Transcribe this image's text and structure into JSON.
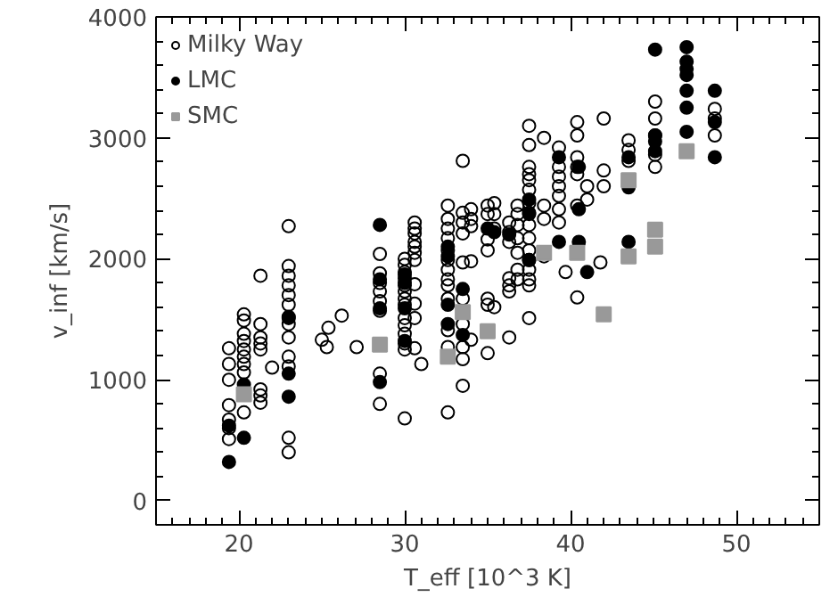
{
  "chart_data": {
    "type": "scatter",
    "xlabel": "T_eff [10^3 K]",
    "ylabel": "v_inf [km/s]",
    "xlim": [
      15,
      55
    ],
    "ylim": [
      -200,
      4000
    ],
    "xticks": [
      20,
      30,
      40,
      50
    ],
    "yticks": [
      0,
      1000,
      2000,
      3000,
      4000
    ],
    "grid": false,
    "legend": "top left",
    "series": [
      {
        "name": "Milky Way",
        "color": "#000000",
        "marker": "circle",
        "x": [
          19.4,
          19.4,
          19.4,
          19.4,
          19.4,
          19.4,
          19.4,
          20.3,
          20.3,
          20.3,
          20.3,
          20.3,
          20.3,
          20.3,
          20.3,
          20.3,
          21.3,
          21.3,
          21.3,
          21.3,
          21.3,
          21.3,
          21.3,
          21.3,
          22,
          23,
          23,
          23,
          23,
          23,
          23,
          23,
          23,
          23,
          23,
          23,
          23,
          23,
          25,
          25.3,
          25.4,
          26.2,
          27.1,
          28.5,
          28.5,
          28.5,
          28.5,
          28.5,
          28.5,
          28.5,
          28.5,
          30,
          30,
          30,
          30,
          30,
          30,
          30,
          30,
          30,
          30,
          30,
          30,
          30,
          30,
          30.6,
          30.6,
          30.6,
          30.6,
          30.6,
          30.6,
          30.6,
          30.6,
          30.6,
          30.6,
          30.6,
          31,
          32.6,
          32.6,
          32.6,
          32.6,
          32.6,
          32.6,
          32.6,
          32.6,
          32.6,
          32.6,
          32.6,
          32.6,
          32.6,
          33.5,
          33.5,
          33.5,
          33.5,
          33.5,
          33.5,
          33.5,
          33.5,
          33.5,
          33.5,
          34,
          34,
          34,
          34,
          34,
          35,
          35,
          35,
          35,
          35,
          35,
          35,
          35.4,
          35.4,
          35.4,
          35.4,
          36.3,
          36.3,
          36.3,
          36.3,
          36.3,
          36.3,
          36.3,
          36.8,
          36.8,
          36.8,
          36.8,
          36.8,
          36.8,
          36.8,
          37.5,
          37.5,
          37.5,
          37.5,
          37.5,
          37.5,
          37.5,
          37.5,
          37.5,
          37.5,
          37.5,
          37.5,
          37.5,
          37.5,
          37.5,
          37.5,
          38.4,
          38.4,
          38.4,
          38.4,
          39.3,
          39.3,
          39.3,
          39.3,
          39.3,
          39.3,
          39.3,
          39.7,
          40.4,
          40.4,
          40.4,
          40.4,
          40.4,
          40.4,
          40.4,
          41,
          41,
          41.8,
          42,
          42,
          42,
          43.5,
          43.5,
          43.5,
          45.1,
          45.1,
          45.1,
          45.1,
          45.1,
          48.7,
          48.7,
          48.7
        ],
        "values": [
          1260,
          1130,
          1000,
          790,
          670,
          600,
          510,
          1540,
          1490,
          1380,
          1320,
          1250,
          1190,
          1130,
          1060,
          730,
          1860,
          1460,
          1350,
          1300,
          1250,
          920,
          870,
          810,
          1100,
          2270,
          1940,
          1860,
          1780,
          1700,
          1620,
          1510,
          1460,
          1350,
          1190,
          1110,
          520,
          400,
          1330,
          1270,
          1430,
          1530,
          1270,
          2040,
          1880,
          1800,
          1730,
          1650,
          1570,
          1050,
          800,
          2000,
          1950,
          1890,
          1840,
          1780,
          1730,
          1670,
          1620,
          1510,
          1450,
          1380,
          1300,
          1250,
          680,
          2300,
          2250,
          2210,
          2140,
          2100,
          2050,
          1990,
          1790,
          1630,
          1510,
          1260,
          1130,
          2440,
          2330,
          2250,
          2170,
          2070,
          1990,
          1910,
          1830,
          1780,
          1670,
          1410,
          1270,
          730,
          2810,
          2380,
          2300,
          2210,
          1970,
          1670,
          1460,
          1270,
          1170,
          950,
          2410,
          2330,
          2270,
          1980,
          1330,
          1670,
          1220,
          2440,
          2370,
          2160,
          2070,
          1620,
          2460,
          2370,
          2250,
          1600,
          2300,
          2220,
          2140,
          1840,
          1780,
          1730,
          1350,
          2440,
          2370,
          2280,
          2170,
          2050,
          1910,
          1830,
          3100,
          2940,
          2760,
          2700,
          2650,
          2570,
          2460,
          2380,
          2280,
          2170,
          2070,
          1990,
          1910,
          1830,
          1780,
          1510,
          3000,
          2440,
          2330,
          2020,
          2920,
          2760,
          2680,
          2600,
          2520,
          2410,
          2300,
          1890,
          3130,
          3020,
          2840,
          2760,
          2700,
          2440,
          1680,
          2600,
          2490,
          1970,
          3160,
          2730,
          2600,
          2980,
          2900,
          2810,
          3300,
          3160,
          3020,
          2860,
          2760,
          3240,
          3160,
          3020
        ]
      },
      {
        "name": "LMC",
        "color": "#000000",
        "marker": "circle",
        "x": [
          19.4,
          19.4,
          20.3,
          20.3,
          23,
          23,
          23,
          28.5,
          28.5,
          28.5,
          28.5,
          30,
          30,
          30,
          30,
          32.6,
          32.6,
          32.6,
          32.6,
          33.5,
          33.5,
          35,
          35.4,
          36.3,
          37.5,
          37.5,
          37.5,
          39.3,
          39.3,
          40.5,
          40.5,
          40.5,
          41,
          43.5,
          43.5,
          43.5,
          45.1,
          45.1,
          45.1,
          45.1,
          47,
          47,
          47,
          47,
          47,
          47,
          47,
          48.7,
          48.7,
          48.7
        ],
        "values": [
          620,
          320,
          960,
          520,
          1520,
          1050,
          860,
          2280,
          1830,
          1590,
          980,
          1870,
          1800,
          1590,
          1320,
          2100,
          2020,
          1620,
          1460,
          1750,
          1370,
          2250,
          2220,
          2200,
          2490,
          2370,
          1990,
          2840,
          2140,
          2760,
          2410,
          2140,
          1890,
          2840,
          2590,
          2140,
          3730,
          3020,
          2970,
          2890,
          3750,
          3630,
          3570,
          3520,
          3390,
          3250,
          3050,
          3390,
          3130,
          2840
        ]
      },
      {
        "name": "SMC",
        "color": "#999999",
        "marker": "square",
        "x": [
          20.3,
          28.5,
          32.6,
          33.5,
          35,
          38.4,
          40.4,
          42,
          43.5,
          43.5,
          45.1,
          45.1,
          47
        ],
        "values": [
          880,
          1290,
          1190,
          1560,
          1400,
          2050,
          2050,
          1540,
          2650,
          2020,
          2240,
          2100,
          2890
        ]
      }
    ]
  }
}
